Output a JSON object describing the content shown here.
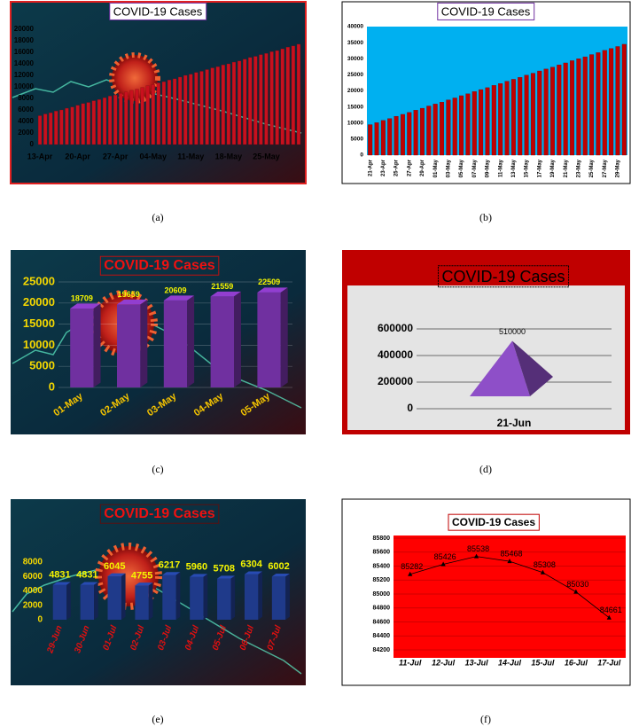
{
  "chart_data": [
    {
      "type": "bar",
      "title": "COVID-19 Cases",
      "caption": "(a)",
      "color": "#c8101e",
      "categories": [
        "13-Apr",
        null,
        null,
        null,
        null,
        null,
        null,
        "20-Apr",
        null,
        null,
        null,
        null,
        null,
        null,
        "27-Apr",
        null,
        null,
        null,
        null,
        null,
        null,
        "04-May",
        null,
        null,
        null,
        null,
        null,
        null,
        "11-May",
        null,
        null,
        null,
        null,
        null,
        null,
        "18-May",
        null,
        null,
        null,
        null,
        null,
        null,
        "25-May",
        null,
        null,
        null,
        null,
        null,
        null
      ],
      "values": [
        5000,
        5300,
        5500,
        5800,
        6000,
        6300,
        6500,
        6800,
        7100,
        7300,
        7600,
        7800,
        8100,
        8400,
        8600,
        8900,
        9100,
        9400,
        9600,
        9900,
        10200,
        10400,
        10700,
        10900,
        11200,
        11400,
        11700,
        12000,
        12200,
        12500,
        12700,
        13000,
        13300,
        13500,
        13800,
        14000,
        14300,
        14500,
        14800,
        15100,
        15300,
        15600,
        15800,
        16100,
        16300,
        16600,
        16900,
        17100,
        17400
      ],
      "ylim": [
        0,
        20000
      ],
      "yticks": [
        0,
        2000,
        4000,
        6000,
        8000,
        10000,
        12000,
        14000,
        16000,
        18000,
        20000
      ],
      "grid": false
    },
    {
      "type": "bar",
      "title": "COVID-19 Cases",
      "caption": "(b)",
      "color": "#c00000",
      "categories": [
        "21-Apr",
        null,
        "23-Apr",
        null,
        "25-Apr",
        null,
        "27-Apr",
        null,
        "29-Apr",
        null,
        "01-May",
        null,
        "03-May",
        null,
        "05-May",
        null,
        "07-May",
        null,
        "09-May",
        null,
        "11-May",
        null,
        "13-May",
        null,
        "15-May",
        null,
        "17-May",
        null,
        "19-May",
        null,
        "21-May",
        null,
        "23-May",
        null,
        "25-May",
        null,
        "27-May",
        null,
        "29-May",
        null
      ],
      "values": [
        9500,
        10100,
        10800,
        11400,
        12100,
        12700,
        13300,
        14000,
        14600,
        15300,
        15900,
        16500,
        17200,
        17800,
        18500,
        19100,
        19800,
        20400,
        21000,
        21700,
        22300,
        23000,
        23600,
        24200,
        24900,
        25500,
        26200,
        26800,
        27400,
        28100,
        28700,
        29400,
        30000,
        30600,
        31300,
        31900,
        32600,
        33200,
        33800,
        34500
      ],
      "ylim": [
        0,
        40000
      ],
      "yticks": [
        0,
        5000,
        10000,
        15000,
        20000,
        25000,
        30000,
        35000,
        40000
      ],
      "grid": false
    },
    {
      "type": "bar3d",
      "title": "COVID-19 Cases",
      "caption": "(c)",
      "color": "#7030a0",
      "categories": [
        "01-May",
        "02-May",
        "03-May",
        "04-May",
        "05-May"
      ],
      "values": [
        18709,
        19659,
        20609,
        21559,
        22509
      ],
      "data_labels": true,
      "ylim": [
        0,
        25000
      ],
      "yticks": [
        0,
        5000,
        10000,
        15000,
        20000,
        25000
      ],
      "grid": true
    },
    {
      "type": "pyramid",
      "title": "COVID-19 Cases",
      "caption": "(d)",
      "color": "#8e4fc8",
      "categories": [
        "21-Jun"
      ],
      "values": [
        510000
      ],
      "data_labels": true,
      "ylim": [
        0,
        700000
      ],
      "yticks": [
        0,
        200000,
        400000,
        600000
      ],
      "grid": true
    },
    {
      "type": "bar3d",
      "title": "COVID-19 Cases",
      "caption": "(e)",
      "color": "#1f3a8a",
      "categories": [
        "29-Jun",
        "30-Jun",
        "01-Jul",
        "02-Jul",
        "03-Jul",
        "04-Jul",
        "05-Jul",
        "06-Jul",
        "07-Jul"
      ],
      "values": [
        4831,
        4831,
        6045,
        4755,
        6217,
        5960,
        5708,
        6304,
        6002
      ],
      "data_labels": true,
      "ylim": [
        0,
        8000
      ],
      "yticks": [
        0,
        2000,
        4000,
        6000,
        8000
      ],
      "grid": false
    },
    {
      "type": "line",
      "title": "COVID-19 Cases",
      "caption": "(f)",
      "color": "#000000",
      "categories": [
        "11-Jul",
        "12-Jul",
        "13-Jul",
        "14-Jul",
        "15-Jul",
        "16-Jul",
        "17-Jul"
      ],
      "values": [
        85282,
        85426,
        85538,
        85468,
        85308,
        85030,
        84661
      ],
      "data_labels": true,
      "ylim": [
        84200,
        85800
      ],
      "yticks": [
        84200,
        84400,
        84600,
        84800,
        85000,
        85200,
        85400,
        85600,
        85800
      ],
      "grid": true
    }
  ]
}
